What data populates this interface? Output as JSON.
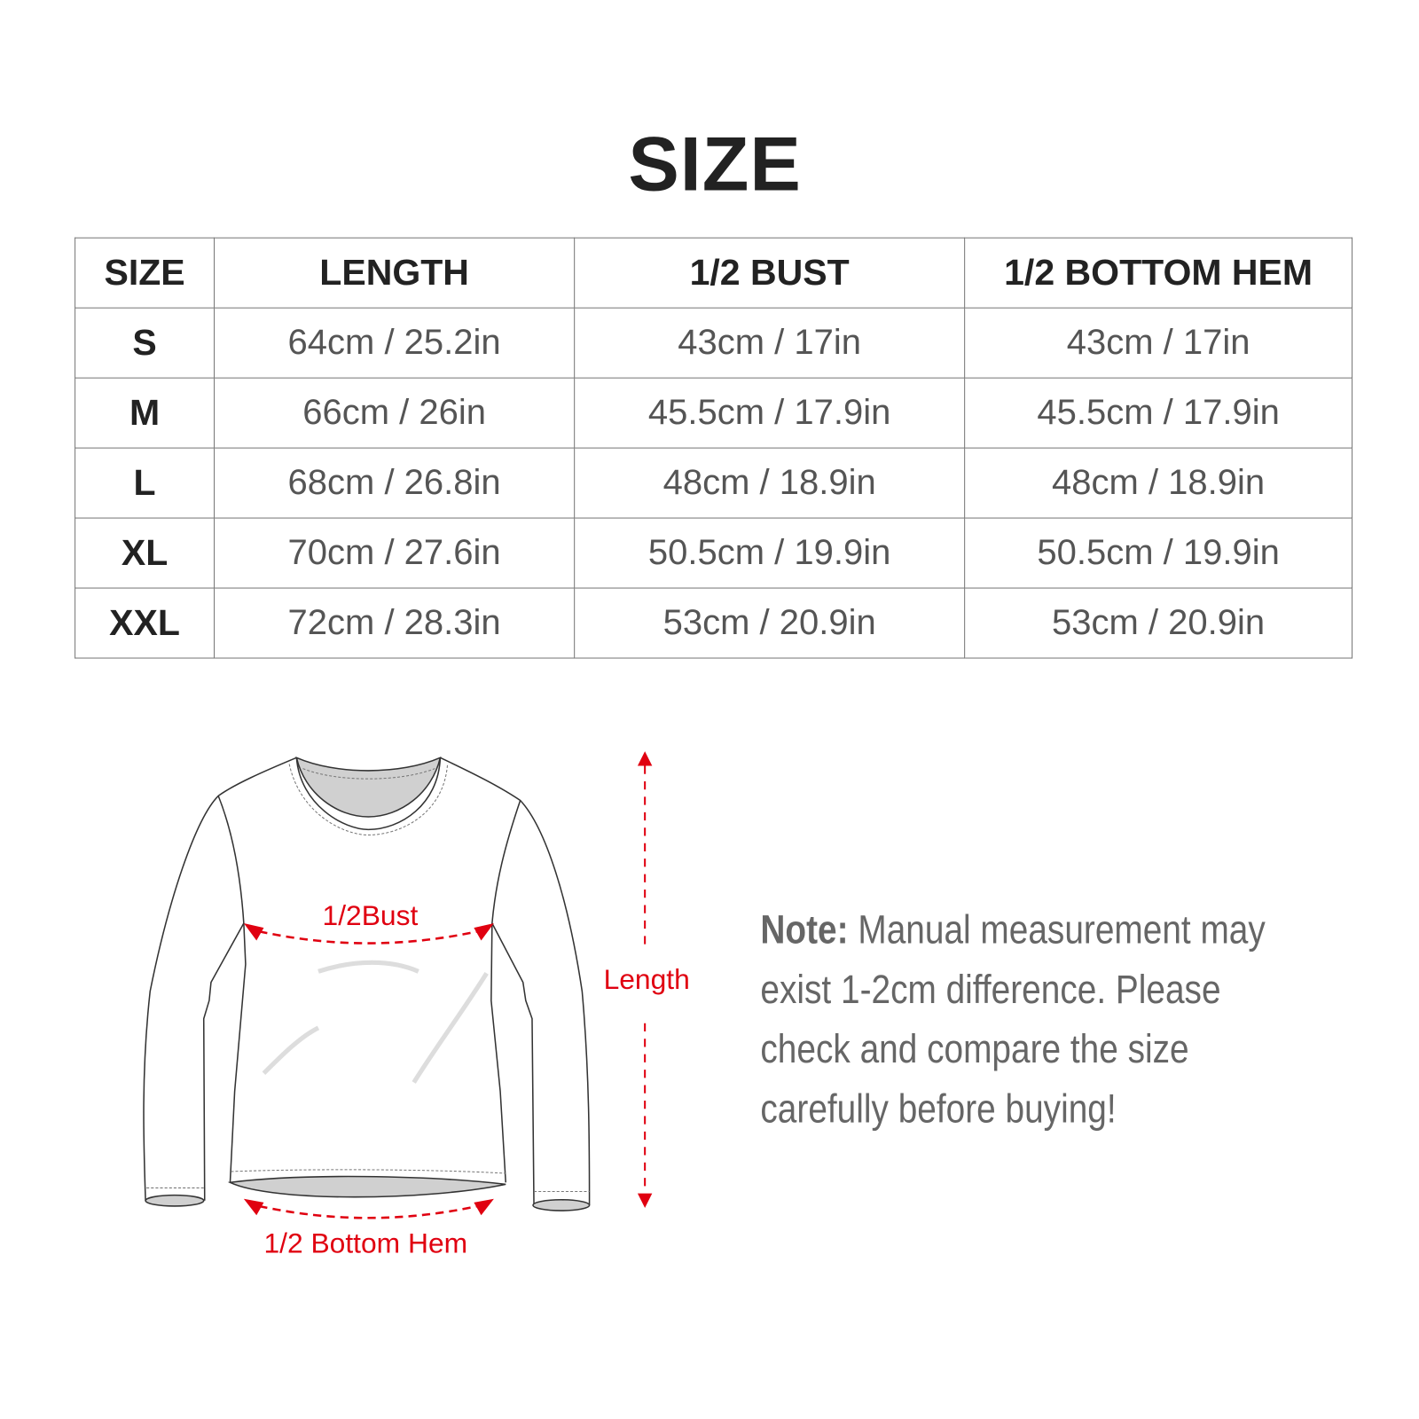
{
  "title": "SIZE",
  "table": {
    "headers": [
      "SIZE",
      "LENGTH",
      "1/2 BUST",
      "1/2 BOTTOM HEM"
    ],
    "rows": [
      [
        "S",
        "64cm / 25.2in",
        "43cm / 17in",
        "43cm / 17in"
      ],
      [
        "M",
        "66cm / 26in",
        "45.5cm / 17.9in",
        "45.5cm / 17.9in"
      ],
      [
        "L",
        "68cm / 26.8in",
        "48cm / 18.9in",
        "48cm / 18.9in"
      ],
      [
        "XL",
        "70cm / 27.6in",
        "50.5cm / 19.9in",
        "50.5cm / 19.9in"
      ],
      [
        "XXL",
        "72cm / 28.3in",
        "53cm / 20.9in",
        "53cm / 20.9in"
      ]
    ]
  },
  "diagram": {
    "bust_label": "1/2Bust",
    "length_label": "Length",
    "hem_label": "1/2 Bottom Hem",
    "accent_color": "#e00010"
  },
  "note": {
    "label": "Note:",
    "lines": [
      "Manual measurement may",
      "exist 1-2cm difference. Please",
      "check and compare the size",
      "carefully before buying!"
    ]
  }
}
